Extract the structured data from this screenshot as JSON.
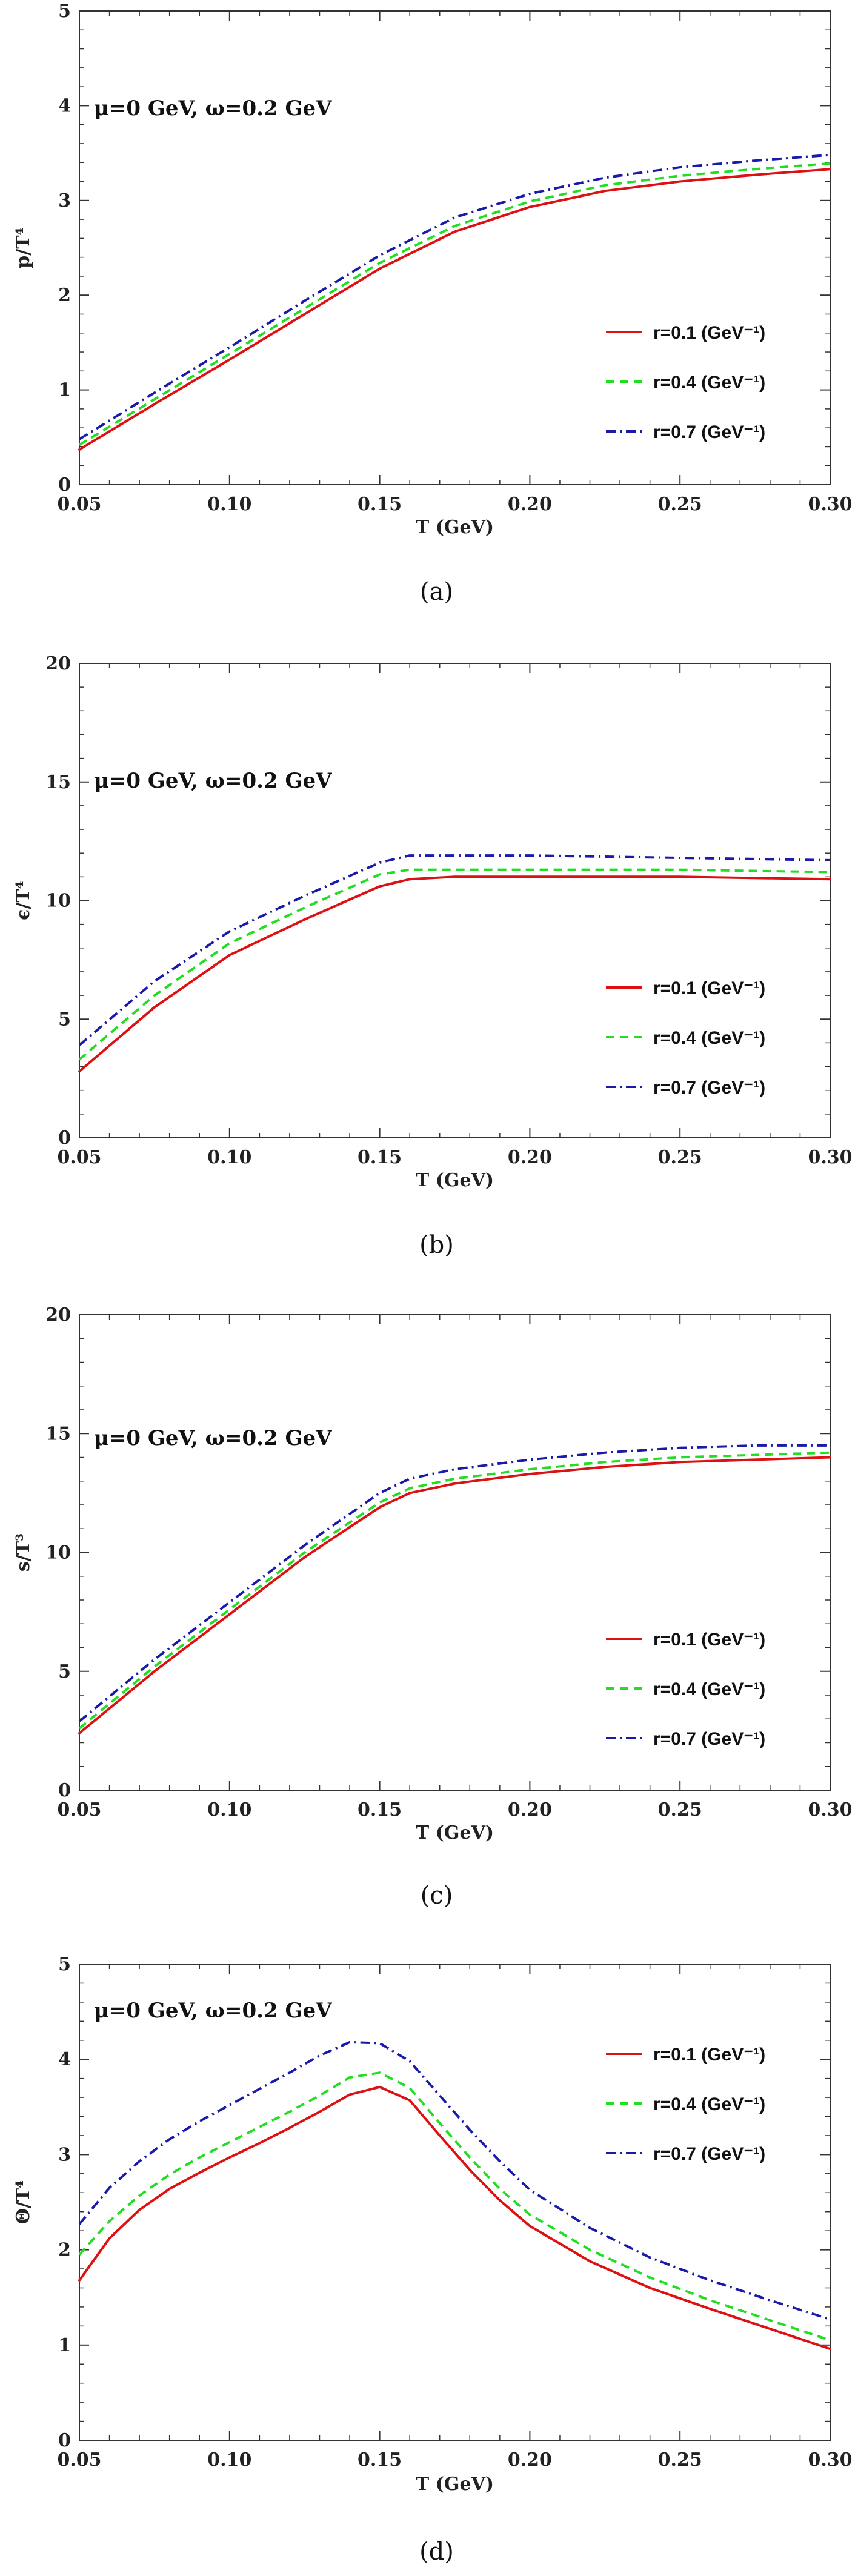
{
  "chart_data": [
    {
      "type": "line",
      "panel_label": "(a)",
      "annotation": "μ=0 GeV, ω=0.2 GeV",
      "xlabel": "T (GeV)",
      "ylabel": "p/T⁴",
      "xlim": [
        0.05,
        0.3
      ],
      "ylim": [
        0,
        5
      ],
      "xticks": [
        "0.05",
        "0.10",
        "0.15",
        "0.20",
        "0.25",
        "0.30"
      ],
      "yticks": [
        "0",
        "1",
        "2",
        "3",
        "4",
        "5"
      ],
      "legend_position": "lower-right",
      "series": [
        {
          "name": "r=0.1 (GeV⁻¹)",
          "color": "#dd1111",
          "style": "solid",
          "x": [
            0.05,
            0.075,
            0.1,
            0.125,
            0.15,
            0.175,
            0.2,
            0.225,
            0.25,
            0.275,
            0.3
          ],
          "y": [
            0.37,
            0.85,
            1.32,
            1.8,
            2.28,
            2.67,
            2.93,
            3.1,
            3.2,
            3.27,
            3.33
          ]
        },
        {
          "name": "r=0.4 (GeV⁻¹)",
          "color": "#22dd22",
          "style": "dashed",
          "x": [
            0.05,
            0.075,
            0.1,
            0.125,
            0.15,
            0.175,
            0.2,
            0.225,
            0.25,
            0.275,
            0.3
          ],
          "y": [
            0.42,
            0.9,
            1.38,
            1.86,
            2.34,
            2.73,
            2.99,
            3.16,
            3.26,
            3.33,
            3.39
          ]
        },
        {
          "name": "r=0.7 (GeV⁻¹)",
          "color": "#1a1aaa",
          "style": "dashdot",
          "x": [
            0.05,
            0.075,
            0.1,
            0.125,
            0.15,
            0.175,
            0.2,
            0.225,
            0.25,
            0.275,
            0.3
          ],
          "y": [
            0.48,
            0.97,
            1.45,
            1.94,
            2.42,
            2.82,
            3.07,
            3.24,
            3.35,
            3.42,
            3.48
          ]
        }
      ]
    },
    {
      "type": "line",
      "panel_label": "(b)",
      "annotation": "μ=0 GeV, ω=0.2 GeV",
      "xlabel": "T (GeV)",
      "ylabel": "ϵ/T⁴",
      "xlim": [
        0.05,
        0.3
      ],
      "ylim": [
        0,
        20
      ],
      "xticks": [
        "0.05",
        "0.10",
        "0.15",
        "0.20",
        "0.25",
        "0.30"
      ],
      "yticks": [
        "0",
        "5",
        "10",
        "15",
        "20"
      ],
      "legend_position": "lower-right",
      "series": [
        {
          "name": "r=0.1 (GeV⁻¹)",
          "color": "#dd1111",
          "style": "solid",
          "x": [
            0.05,
            0.075,
            0.1,
            0.125,
            0.15,
            0.16,
            0.175,
            0.2,
            0.25,
            0.3
          ],
          "y": [
            2.8,
            5.5,
            7.7,
            9.2,
            10.6,
            10.9,
            11.0,
            11.0,
            11.0,
            10.9
          ]
        },
        {
          "name": "r=0.4 (GeV⁻¹)",
          "color": "#22dd22",
          "style": "dashed",
          "x": [
            0.05,
            0.075,
            0.1,
            0.125,
            0.15,
            0.16,
            0.175,
            0.2,
            0.25,
            0.3
          ],
          "y": [
            3.3,
            6.0,
            8.2,
            9.7,
            11.1,
            11.3,
            11.3,
            11.3,
            11.3,
            11.2
          ]
        },
        {
          "name": "r=0.7 (GeV⁻¹)",
          "color": "#1a1aaa",
          "style": "dashdot",
          "x": [
            0.05,
            0.075,
            0.1,
            0.125,
            0.15,
            0.16,
            0.175,
            0.2,
            0.25,
            0.3
          ],
          "y": [
            3.9,
            6.6,
            8.7,
            10.2,
            11.6,
            11.9,
            11.9,
            11.9,
            11.8,
            11.7
          ]
        }
      ]
    },
    {
      "type": "line",
      "panel_label": "(c)",
      "annotation": "μ=0 GeV, ω=0.2 GeV",
      "xlabel": "T (GeV)",
      "ylabel": "s/T³",
      "xlim": [
        0.05,
        0.3
      ],
      "ylim": [
        0,
        20
      ],
      "xticks": [
        "0.05",
        "0.10",
        "0.15",
        "0.20",
        "0.25",
        "0.30"
      ],
      "yticks": [
        "0",
        "5",
        "10",
        "15",
        "20"
      ],
      "legend_position": "lower-right",
      "series": [
        {
          "name": "r=0.1 (GeV⁻¹)",
          "color": "#dd1111",
          "style": "solid",
          "x": [
            0.05,
            0.075,
            0.1,
            0.125,
            0.15,
            0.16,
            0.175,
            0.2,
            0.225,
            0.25,
            0.275,
            0.3
          ],
          "y": [
            2.4,
            5.0,
            7.4,
            9.8,
            11.9,
            12.5,
            12.9,
            13.3,
            13.6,
            13.8,
            13.9,
            14.0
          ]
        },
        {
          "name": "r=0.4 (GeV⁻¹)",
          "color": "#22dd22",
          "style": "dashed",
          "x": [
            0.05,
            0.075,
            0.1,
            0.125,
            0.15,
            0.16,
            0.175,
            0.2,
            0.225,
            0.25,
            0.275,
            0.3
          ],
          "y": [
            2.6,
            5.2,
            7.6,
            10.0,
            12.1,
            12.7,
            13.1,
            13.5,
            13.8,
            14.0,
            14.1,
            14.2
          ]
        },
        {
          "name": "r=0.7 (GeV⁻¹)",
          "color": "#1a1aaa",
          "style": "dashdot",
          "x": [
            0.05,
            0.075,
            0.1,
            0.125,
            0.15,
            0.16,
            0.175,
            0.2,
            0.225,
            0.25,
            0.275,
            0.3
          ],
          "y": [
            2.9,
            5.5,
            7.9,
            10.3,
            12.5,
            13.1,
            13.5,
            13.9,
            14.2,
            14.4,
            14.5,
            14.5
          ]
        }
      ]
    },
    {
      "type": "line",
      "panel_label": "(d)",
      "annotation": "μ=0 GeV, ω=0.2 GeV",
      "xlabel": "T (GeV)",
      "ylabel": "Θ/T⁴",
      "xlim": [
        0.05,
        0.3
      ],
      "ylim": [
        0,
        5
      ],
      "xticks": [
        "0.05",
        "0.10",
        "0.15",
        "0.20",
        "0.25",
        "0.30"
      ],
      "yticks": [
        "0",
        "1",
        "2",
        "3",
        "4",
        "5"
      ],
      "legend_position": "top-right",
      "series": [
        {
          "name": "r=0.1 (GeV⁻¹)",
          "color": "#dd1111",
          "style": "solid",
          "x": [
            0.05,
            0.06,
            0.07,
            0.08,
            0.09,
            0.1,
            0.11,
            0.12,
            0.13,
            0.14,
            0.15,
            0.16,
            0.17,
            0.18,
            0.19,
            0.2,
            0.22,
            0.24,
            0.26,
            0.28,
            0.3
          ],
          "y": [
            1.68,
            2.12,
            2.42,
            2.64,
            2.81,
            2.97,
            3.12,
            3.28,
            3.45,
            3.63,
            3.71,
            3.57,
            3.2,
            2.84,
            2.52,
            2.25,
            1.88,
            1.6,
            1.38,
            1.17,
            0.96
          ]
        },
        {
          "name": "r=0.4 (GeV⁻¹)",
          "color": "#22dd22",
          "style": "dashed",
          "x": [
            0.05,
            0.06,
            0.07,
            0.08,
            0.09,
            0.1,
            0.11,
            0.12,
            0.13,
            0.14,
            0.15,
            0.16,
            0.17,
            0.18,
            0.19,
            0.2,
            0.22,
            0.24,
            0.26,
            0.28,
            0.3
          ],
          "y": [
            1.95,
            2.3,
            2.57,
            2.79,
            2.97,
            3.13,
            3.29,
            3.45,
            3.62,
            3.81,
            3.86,
            3.7,
            3.33,
            2.97,
            2.64,
            2.37,
            2.0,
            1.71,
            1.47,
            1.26,
            1.05
          ]
        },
        {
          "name": "r=0.7 (GeV⁻¹)",
          "color": "#1a1aaa",
          "style": "dashdot",
          "x": [
            0.05,
            0.06,
            0.07,
            0.08,
            0.09,
            0.1,
            0.11,
            0.12,
            0.13,
            0.14,
            0.15,
            0.16,
            0.17,
            0.18,
            0.19,
            0.2,
            0.22,
            0.24,
            0.26,
            0.28,
            0.3
          ],
          "y": [
            2.27,
            2.65,
            2.93,
            3.16,
            3.35,
            3.52,
            3.69,
            3.86,
            4.04,
            4.18,
            4.17,
            3.98,
            3.62,
            3.26,
            2.93,
            2.63,
            2.23,
            1.92,
            1.68,
            1.47,
            1.27
          ]
        }
      ]
    }
  ]
}
